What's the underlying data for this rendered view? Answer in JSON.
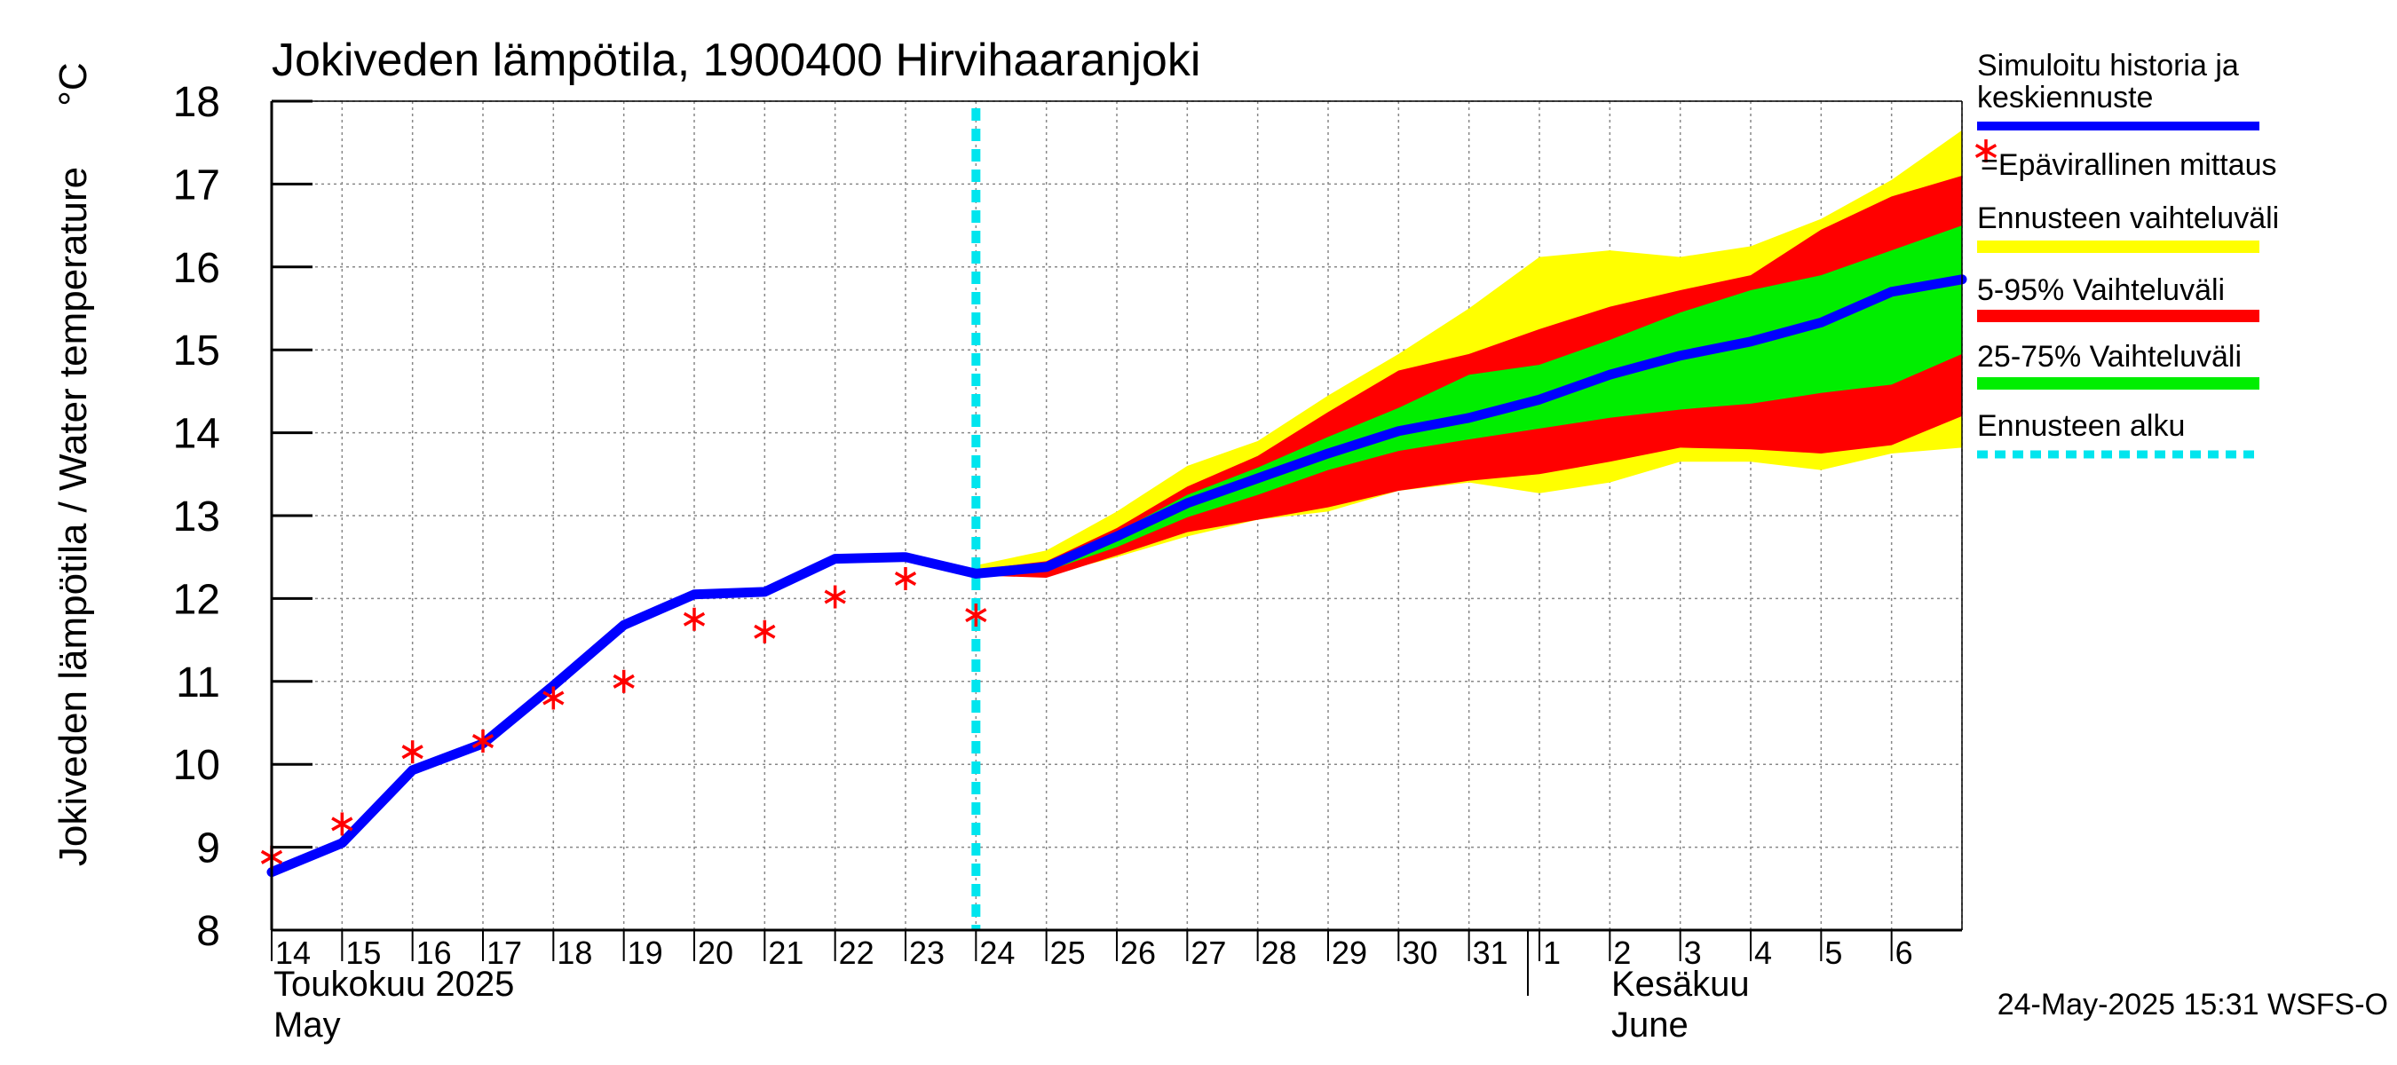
{
  "chart_data": {
    "type": "line",
    "title": "Jokiveden lämpötila, 1900400 Hirvihaaranjoki",
    "ylabel": "Jokiveden lämpötila / Water temperature",
    "yunit": "°C",
    "ylim": [
      8,
      18
    ],
    "yticks": [
      "8",
      "9",
      "10",
      "11",
      "12",
      "13",
      "14",
      "15",
      "16",
      "17",
      "18"
    ],
    "xlim": [
      0,
      24
    ],
    "xticks": [
      "14",
      "15",
      "16",
      "17",
      "18",
      "19",
      "20",
      "21",
      "22",
      "23",
      "24",
      "25",
      "26",
      "27",
      "28",
      "29",
      "30",
      "31",
      "1",
      "2",
      "3",
      "4",
      "5",
      "6"
    ],
    "month_labels": {
      "may_fi": "Toukokuu  2025",
      "may_en": "May",
      "june_fi": "Kesäkuu",
      "june_en": "June"
    },
    "grid": true,
    "forecast_start_x": 10,
    "simulated_history": {
      "x": [
        0,
        1,
        2,
        3,
        4,
        5,
        6,
        7,
        8,
        9,
        10
      ],
      "y": [
        8.7,
        9.05,
        9.93,
        10.25,
        10.95,
        11.68,
        12.05,
        12.08,
        12.48,
        12.5,
        12.3
      ]
    },
    "median_forecast": {
      "x": [
        10,
        11,
        12,
        13,
        14,
        15,
        16,
        17,
        18,
        19,
        20,
        21,
        22,
        23,
        24
      ],
      "y": [
        12.3,
        12.38,
        12.75,
        13.15,
        13.45,
        13.75,
        14.02,
        14.18,
        14.4,
        14.7,
        14.93,
        15.1,
        15.33,
        15.7,
        15.85
      ]
    },
    "band_yellow": {
      "x": [
        10,
        11,
        12,
        13,
        14,
        15,
        16,
        17,
        18,
        19,
        20,
        21,
        22,
        23,
        24
      ],
      "low": [
        12.28,
        12.28,
        12.5,
        12.75,
        12.95,
        13.05,
        13.3,
        13.4,
        13.27,
        13.4,
        13.65,
        13.65,
        13.55,
        13.75,
        13.82
      ],
      "high": [
        12.4,
        12.58,
        13.05,
        13.6,
        13.9,
        14.45,
        14.95,
        15.5,
        16.12,
        16.2,
        16.12,
        16.25,
        16.58,
        17.05,
        17.65
      ]
    },
    "band_red": {
      "x": [
        10,
        11,
        12,
        13,
        14,
        15,
        16,
        17,
        18,
        19,
        20,
        21,
        22,
        23,
        24
      ],
      "low": [
        12.28,
        12.25,
        12.52,
        12.8,
        12.95,
        13.1,
        13.3,
        13.42,
        13.5,
        13.65,
        13.82,
        13.8,
        13.75,
        13.85,
        14.2
      ],
      "high": [
        12.35,
        12.45,
        12.85,
        13.35,
        13.72,
        14.25,
        14.75,
        14.95,
        15.25,
        15.52,
        15.72,
        15.9,
        16.45,
        16.85,
        17.1
      ]
    },
    "band_green": {
      "x": [
        10,
        11,
        12,
        13,
        14,
        15,
        16,
        17,
        18,
        19,
        20,
        21,
        22,
        23,
        24
      ],
      "low": [
        12.3,
        12.33,
        12.62,
        12.98,
        13.25,
        13.55,
        13.78,
        13.92,
        14.05,
        14.18,
        14.28,
        14.35,
        14.48,
        14.58,
        14.95
      ],
      "high": [
        12.32,
        12.42,
        12.8,
        13.25,
        13.58,
        13.95,
        14.3,
        14.7,
        14.82,
        15.12,
        15.45,
        15.72,
        15.9,
        16.2,
        16.5
      ]
    },
    "observations": {
      "x": [
        0,
        1,
        2,
        3,
        4,
        5,
        6,
        7,
        8,
        9,
        10
      ],
      "y": [
        8.88,
        9.28,
        10.15,
        10.28,
        10.8,
        11.0,
        11.75,
        11.6,
        12.02,
        12.24,
        11.8
      ]
    },
    "legend": [
      {
        "label": "Simuloitu historia ja\nkeskiennuste",
        "kind": "line",
        "color": "#0000ff"
      },
      {
        "label": "=Epävirallinen mittaus",
        "kind": "marker",
        "color": "#ff0000"
      },
      {
        "label": "Ennusteen vaihteluväli",
        "kind": "line",
        "color": "#ffff00"
      },
      {
        "label": "5-95% Vaihteluväli",
        "kind": "line",
        "color": "#ff0000"
      },
      {
        "label": "25-75% Vaihteluväli",
        "kind": "line",
        "color": "#00ee00"
      },
      {
        "label": "Ennusteen alku",
        "kind": "dashed",
        "color": "#00e5ee"
      }
    ],
    "timestamp": "24-May-2025 15:31 WSFS-O"
  },
  "colors": {
    "history_line": "#0000ff",
    "observation": "#ff0000",
    "band_yellow": "#ffff00",
    "band_red": "#ff0000",
    "band_green": "#00ee00",
    "forecast_start": "#00e5ee",
    "grid": "#888888"
  }
}
